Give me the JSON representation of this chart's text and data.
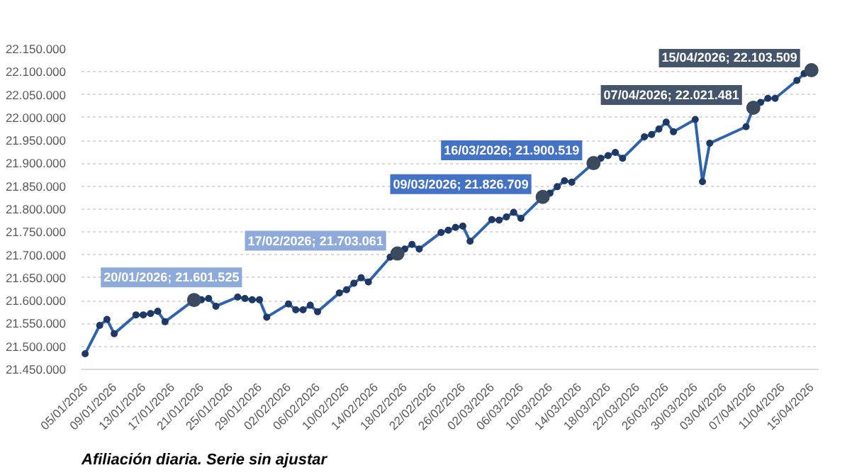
{
  "chart_data": {
    "type": "line",
    "marker": "circle",
    "line_style": "solid",
    "grid": "y",
    "x": [
      "2026-01-05",
      "2026-01-07",
      "2026-01-08",
      "2026-01-09",
      "2026-01-12",
      "2026-01-13",
      "2026-01-14",
      "2026-01-15",
      "2026-01-16",
      "2026-01-20",
      "2026-01-21",
      "2026-01-22",
      "2026-01-23",
      "2026-01-26",
      "2026-01-27",
      "2026-01-28",
      "2026-01-29",
      "2026-01-30",
      "2026-02-02",
      "2026-02-03",
      "2026-02-04",
      "2026-02-05",
      "2026-02-06",
      "2026-02-09",
      "2026-02-10",
      "2026-02-11",
      "2026-02-12",
      "2026-02-13",
      "2026-02-16",
      "2026-02-17",
      "2026-02-18",
      "2026-02-19",
      "2026-02-20",
      "2026-02-23",
      "2026-02-24",
      "2026-02-25",
      "2026-02-26",
      "2026-02-27",
      "2026-03-02",
      "2026-03-03",
      "2026-03-04",
      "2026-03-05",
      "2026-03-06",
      "2026-03-09",
      "2026-03-10",
      "2026-03-11",
      "2026-03-12",
      "2026-03-13",
      "2026-03-16",
      "2026-03-17",
      "2026-03-18",
      "2026-03-19",
      "2026-03-20",
      "2026-03-23",
      "2026-03-24",
      "2026-03-25",
      "2026-03-26",
      "2026-03-27",
      "2026-03-30",
      "2026-03-31",
      "2026-04-01",
      "2026-04-06",
      "2026-04-07",
      "2026-04-08",
      "2026-04-09",
      "2026-04-10",
      "2026-04-13",
      "2026-04-14",
      "2026-04-15"
    ],
    "series": [
      {
        "color": "#2e64ae",
        "values": [
          21484000,
          21546000,
          21559000,
          21528000,
          21569000,
          21569000,
          21572000,
          21577000,
          21554000,
          21601525,
          21602000,
          21605000,
          21588000,
          21608000,
          21605000,
          21602000,
          21602000,
          21564000,
          21593000,
          21580000,
          21580000,
          21590000,
          21576000,
          21617000,
          21624000,
          21638000,
          21650000,
          21641000,
          21695000,
          21703061,
          21713000,
          21723000,
          21713000,
          21749000,
          21754000,
          21760000,
          21763000,
          21730000,
          21777000,
          21776000,
          21783000,
          21793000,
          21780000,
          21826709,
          21835000,
          21849000,
          21862000,
          21859000,
          21900519,
          21911000,
          21917000,
          21924000,
          21911000,
          21958000,
          21963000,
          21975000,
          21990000,
          21969000,
          21996000,
          21860000,
          21944000,
          21980000,
          22021481,
          22033000,
          22042000,
          22042000,
          22081000,
          22096000,
          22103509
        ]
      }
    ],
    "xlim": [
      "2026-01-04T12:00",
      "2026-04-16"
    ],
    "xticks": [
      {
        "value": "2026-01-05",
        "label": "05/01/2026"
      },
      {
        "value": "2026-01-09",
        "label": "09/01/2026"
      },
      {
        "value": "2026-01-13",
        "label": "13/01/2026"
      },
      {
        "value": "2026-01-17",
        "label": "17/01/2026"
      },
      {
        "value": "2026-01-21",
        "label": "21/01/2026"
      },
      {
        "value": "2026-01-25",
        "label": "25/01/2026"
      },
      {
        "value": "2026-01-29",
        "label": "29/01/2026"
      },
      {
        "value": "2026-02-02",
        "label": "02/02/2026"
      },
      {
        "value": "2026-02-06",
        "label": "06/02/2026"
      },
      {
        "value": "2026-02-10",
        "label": "10/02/2026"
      },
      {
        "value": "2026-02-14",
        "label": "14/02/2026"
      },
      {
        "value": "2026-02-18",
        "label": "18/02/2026"
      },
      {
        "value": "2026-02-22",
        "label": "22/02/2026"
      },
      {
        "value": "2026-02-26",
        "label": "26/02/2026"
      },
      {
        "value": "2026-03-02",
        "label": "02/03/2026"
      },
      {
        "value": "2026-03-06",
        "label": "06/03/2026"
      },
      {
        "value": "2026-03-10",
        "label": "10/03/2026"
      },
      {
        "value": "2026-03-14",
        "label": "14/03/2026"
      },
      {
        "value": "2026-03-18",
        "label": "18/03/2026"
      },
      {
        "value": "2026-03-22",
        "label": "22/03/2026"
      },
      {
        "value": "2026-03-26",
        "label": "26/03/2026"
      },
      {
        "value": "2026-03-30",
        "label": "30/03/2026"
      },
      {
        "value": "2026-04-03",
        "label": "03/04/2026"
      },
      {
        "value": "2026-04-07",
        "label": "07/04/2026"
      },
      {
        "value": "2026-04-11",
        "label": "11/04/2026"
      },
      {
        "value": "2026-04-15",
        "label": "15/04/2026"
      }
    ],
    "ylim": [
      21450000,
      22150000
    ],
    "yticks": [
      {
        "value": 21450000,
        "label": "21.450.000"
      },
      {
        "value": 21500000,
        "label": "21.500.000"
      },
      {
        "value": 21550000,
        "label": "21.550.000"
      },
      {
        "value": 21600000,
        "label": "21.600.000"
      },
      {
        "value": 21650000,
        "label": "21.650.000"
      },
      {
        "value": 21700000,
        "label": "21.700.000"
      },
      {
        "value": 21750000,
        "label": "21.750.000"
      },
      {
        "value": 21800000,
        "label": "21.800.000"
      },
      {
        "value": 21850000,
        "label": "21.850.000"
      },
      {
        "value": 21900000,
        "label": "21.900.000"
      },
      {
        "value": 21950000,
        "label": "21.950.000"
      },
      {
        "value": 22000000,
        "label": "22.000.000"
      },
      {
        "value": 22050000,
        "label": "22.050.000"
      },
      {
        "value": 22100000,
        "label": "22.100.000"
      },
      {
        "value": 22150000,
        "label": "22.150.000"
      }
    ],
    "annotations": [
      {
        "text": "20/01/2026; 21.601.525",
        "x": "2026-01-20",
        "y": 21601525
      },
      {
        "text": "17/02/2026; 21.703.061",
        "x": "2026-02-17",
        "y": 21703061
      },
      {
        "text": "09/03/2026; 21.826.709",
        "x": "2026-03-09",
        "y": 21826709
      },
      {
        "text": "16/03/2026; 21.900.519",
        "x": "2026-03-16",
        "y": 21900519
      },
      {
        "text": "07/04/2026; 22.021.481",
        "x": "2026-04-07",
        "y": 22021481
      },
      {
        "text": "15/04/2026; 22.103.509",
        "x": "2026-04-15",
        "y": 22103509
      },
      "Afiliación diaria. Serie sin ajustar"
    ]
  }
}
